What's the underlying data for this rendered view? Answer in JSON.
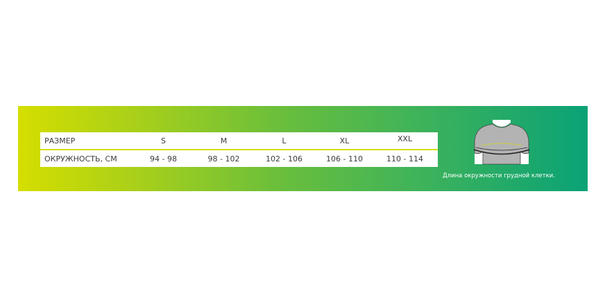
{
  "size_table": {
    "header_label": "РАЗМЕР",
    "sizes": [
      "S",
      "M",
      "L",
      "XL",
      "XXL"
    ],
    "measure_label": "ОКРУЖНОСТЬ, СМ",
    "ranges": [
      "94 - 98",
      "98 - 102",
      "102 - 106",
      "106 - 110",
      "110 - 114"
    ]
  },
  "illustration": {
    "icon": "torso-chest-measurement-icon",
    "caption": "Длина окружности грудной клетки."
  },
  "colors": {
    "gradient_start": "#d5de00",
    "gradient_end": "#0aa276",
    "accent_line": "#d6de00"
  }
}
